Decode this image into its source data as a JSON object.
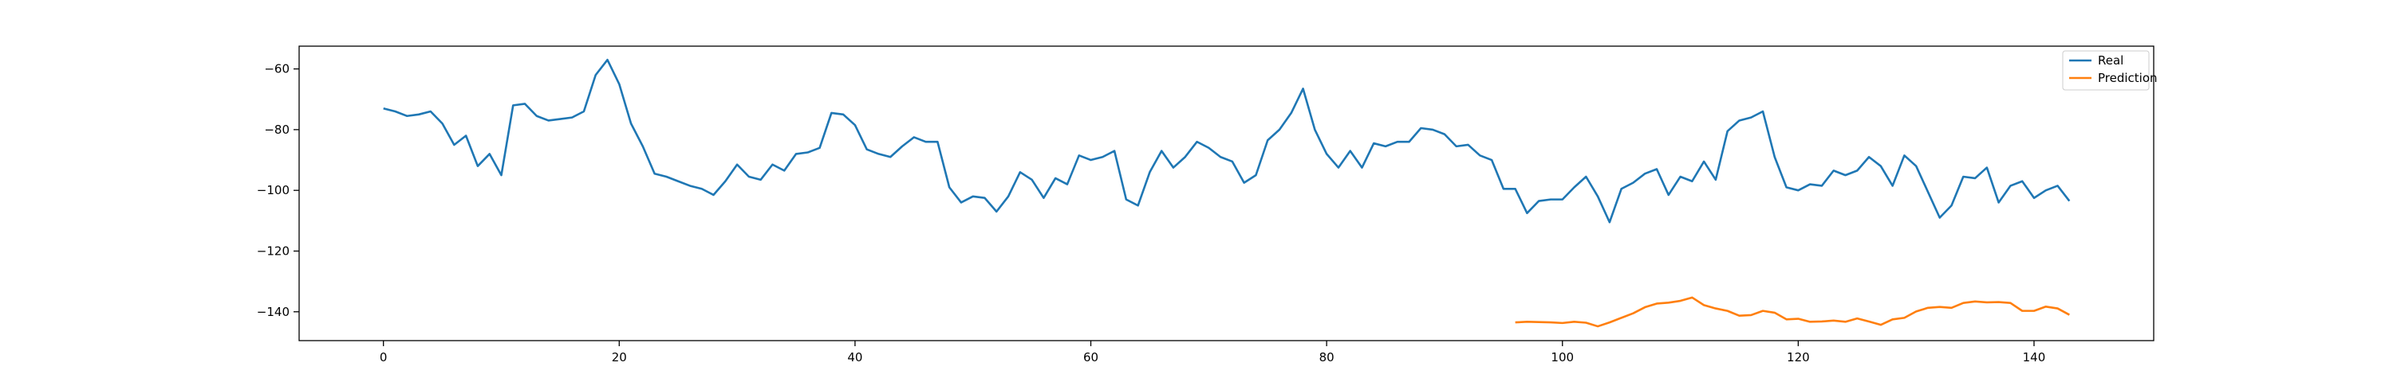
{
  "chart_data": {
    "type": "line",
    "title": "",
    "xlabel": "",
    "ylabel": "",
    "xlim": [
      -7.15,
      150.15
    ],
    "ylim": [
      -149.5,
      -52.5
    ],
    "xticks": [
      0,
      20,
      40,
      60,
      80,
      100,
      120,
      140
    ],
    "yticks": [
      -60,
      -80,
      -100,
      -120,
      -140
    ],
    "grid": false,
    "legend_position": "top-right",
    "series": [
      {
        "name": "Real",
        "color": "#1f77b4",
        "x_start": 0,
        "values": [
          -73,
          -74,
          -75.5,
          -75,
          -74,
          -78,
          -85,
          -82,
          -92,
          -88,
          -95,
          -72,
          -71.5,
          -75.5,
          -77,
          -76.5,
          -76,
          -74,
          -62,
          -57,
          -65,
          -78,
          -85.5,
          -94.5,
          -95.5,
          -97,
          -98.5,
          -99.5,
          -101.5,
          -97,
          -91.5,
          -95.5,
          -96.5,
          -91.5,
          -93.5,
          -88,
          -87.5,
          -86,
          -74.5,
          -75,
          -78.5,
          -86.5,
          -88,
          -89,
          -85.5,
          -82.5,
          -84,
          -84,
          -99,
          -104,
          -102,
          -102.5,
          -107,
          -102,
          -94,
          -96.5,
          -102.5,
          -96,
          -98,
          -88.5,
          -90,
          -89,
          -87,
          -103,
          -105,
          -94,
          -87,
          -92.5,
          -89,
          -84,
          -86,
          -89,
          -90.5,
          -97.5,
          -95,
          -83.5,
          -80,
          -74.5,
          -66.5,
          -80,
          -88,
          -92.5,
          -87,
          -92.5,
          -84.5,
          -85.5,
          -84,
          -84,
          -79.5,
          -80,
          -81.5,
          -85.5,
          -85,
          -88.5,
          -90,
          -99.5,
          -99.5,
          -107.5,
          -103.5,
          -103,
          -103,
          -99,
          -95.5,
          -102,
          -110.5,
          -99.5,
          -97.5,
          -94.5,
          -93,
          -101.5,
          -95.5,
          -97,
          -90.5,
          -96.5,
          -80.5,
          -77,
          -76,
          -74,
          -89,
          -99,
          -100,
          -98,
          -98.5,
          -93.5,
          -95,
          -93.5,
          -89,
          -92,
          -98.5,
          -88.5,
          -92,
          -100.5,
          -109,
          -105,
          -95.5,
          -96,
          -92.5,
          -104,
          -98.5,
          -97,
          -102.5,
          -100,
          -98.5,
          -103.5
        ]
      },
      {
        "name": "Prediction",
        "color": "#ff7f0e",
        "x_start": 96,
        "values": [
          -143.5,
          -143.3,
          -143.4,
          -143.5,
          -143.7,
          -143.3,
          -143.6,
          -144.8,
          -143.5,
          -142,
          -140.5,
          -138.5,
          -137.3,
          -137,
          -136.4,
          -135.3,
          -137.8,
          -138.9,
          -139.7,
          -141.3,
          -141.1,
          -139.7,
          -140.3,
          -142.5,
          -142.3,
          -143.3,
          -143.2,
          -142.9,
          -143.3,
          -142.2,
          -143.2,
          -144.3,
          -142.5,
          -142,
          -139.9,
          -138.7,
          -138.4,
          -138.7,
          -137.1,
          -136.6,
          -136.9,
          -136.8,
          -137.1,
          -139.7,
          -139.7,
          -138.3,
          -138.9,
          -141
        ]
      }
    ]
  }
}
